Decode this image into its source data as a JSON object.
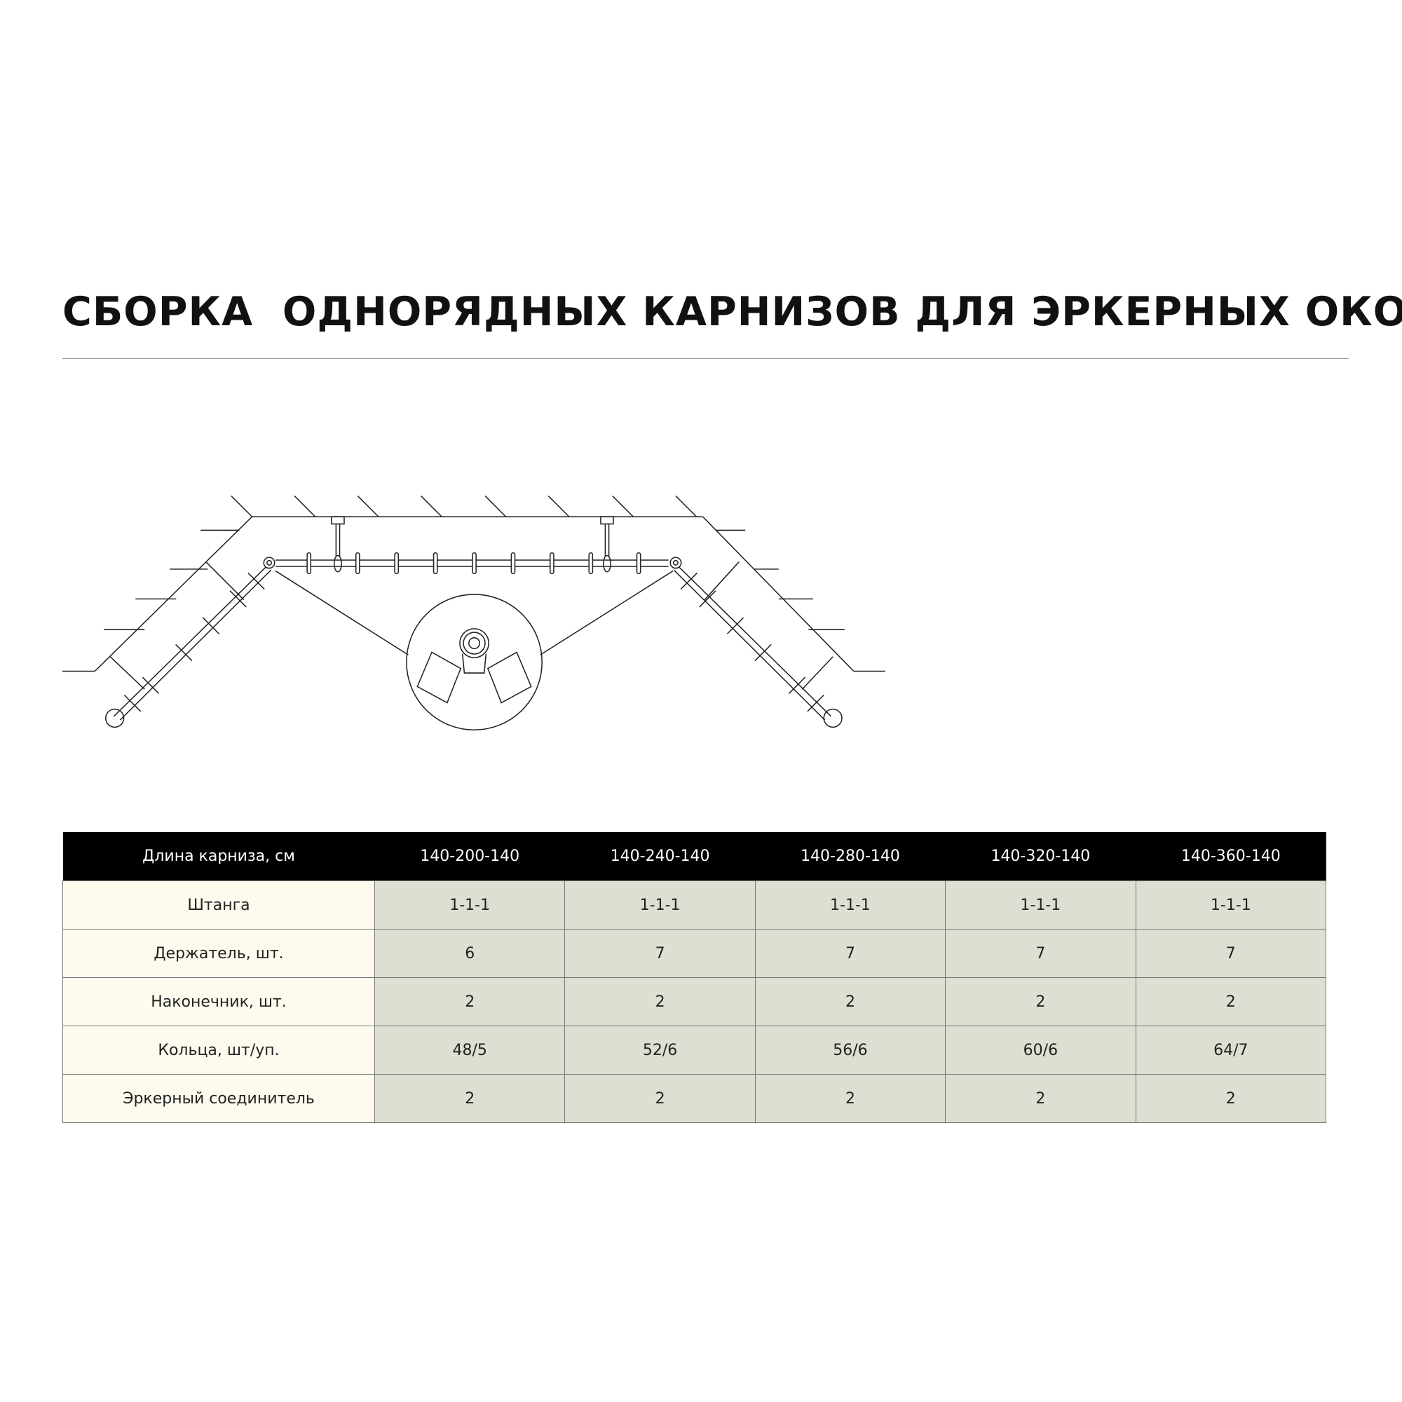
{
  "title": "СБОРКА  ОДНОРЯДНЫХ КАРНИЗОВ ДЛЯ ЭРКЕРНЫХ ОКОН",
  "table": {
    "header": [
      "Длина карниза, см",
      "140-200-140",
      "140-240-140",
      "140-280-140",
      "140-320-140",
      "140-360-140"
    ],
    "rows": [
      [
        "Штанга",
        "1-1-1",
        "1-1-1",
        "1-1-1",
        "1-1-1",
        "1-1-1"
      ],
      [
        "Держатель, шт.",
        "6",
        "7",
        "7",
        "7",
        "7"
      ],
      [
        "Наконечник, шт.",
        "2",
        "2",
        "2",
        "2",
        "2"
      ],
      [
        "Кольца, шт/уп.",
        "48/5",
        "52/6",
        "56/6",
        "60/6",
        "64/7"
      ],
      [
        "Эркерный соединитель",
        "2",
        "2",
        "2",
        "2",
        "2"
      ]
    ]
  },
  "colors": {
    "header_bg": "#000000",
    "label_bg": "#fefbee",
    "value_bg": "#dcdfd1"
  }
}
